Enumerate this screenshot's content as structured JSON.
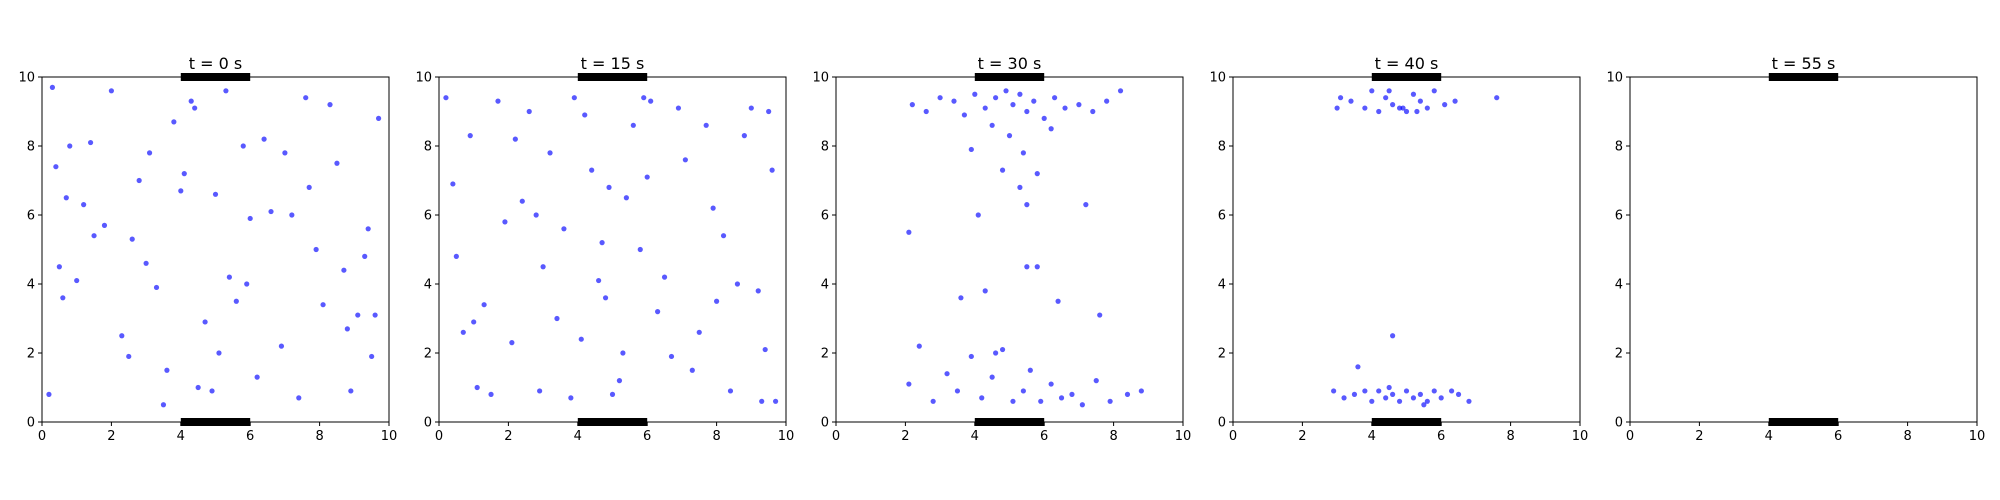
{
  "chart_data": [
    {
      "type": "scatter",
      "title": "t = 0 s",
      "color": "#0000ff",
      "x": [
        0.3,
        0.5,
        0.8,
        1.2,
        0.6,
        1.5,
        2.0,
        2.5,
        3.1,
        3.5,
        4.0,
        4.3,
        4.7,
        5.1,
        5.4,
        5.8,
        6.2,
        6.6,
        7.0,
        7.4,
        7.9,
        8.3,
        8.7,
        9.1,
        9.5,
        9.7,
        0.2,
        1.0,
        1.8,
        2.8,
        3.3,
        3.8,
        4.5,
        5.0,
        5.6,
        6.0,
        6.9,
        7.6,
        8.1,
        8.9,
        9.4,
        0.7,
        1.4,
        2.3,
        3.0,
        4.1,
        4.9,
        5.3,
        6.4,
        7.2,
        8.5,
        9.3,
        9.6,
        2.6,
        3.6,
        4.4,
        5.9,
        7.7,
        8.8,
        0.4
      ],
      "y": [
        9.7,
        4.5,
        8.0,
        6.3,
        3.6,
        5.4,
        9.6,
        1.9,
        7.8,
        0.5,
        6.7,
        9.3,
        2.9,
        2.0,
        4.2,
        8.0,
        1.3,
        6.1,
        7.8,
        0.7,
        5.0,
        9.2,
        4.4,
        3.1,
        1.9,
        8.8,
        0.8,
        4.1,
        5.7,
        7.0,
        3.9,
        8.7,
        1.0,
        6.6,
        3.5,
        5.9,
        2.2,
        9.4,
        3.4,
        0.9,
        5.6,
        6.5,
        8.1,
        2.5,
        4.6,
        7.2,
        0.9,
        9.6,
        8.2,
        6.0,
        7.5,
        4.8,
        3.1,
        5.3,
        1.5,
        9.1,
        4.0,
        6.8,
        2.7,
        7.4
      ],
      "exit_x": [
        4,
        6
      ],
      "exit_y": [
        0,
        10
      ],
      "xlim": [
        0,
        10
      ],
      "ylim": [
        0,
        10
      ],
      "xticks": [
        0,
        2,
        4,
        6,
        8,
        10
      ],
      "yticks": [
        0,
        2,
        4,
        6,
        8,
        10
      ]
    },
    {
      "type": "scatter",
      "title": "t = 15 s",
      "color": "#0000ff",
      "x": [
        0.2,
        0.5,
        0.9,
        1.3,
        1.7,
        2.1,
        2.4,
        2.9,
        3.2,
        3.6,
        3.9,
        4.2,
        4.6,
        4.9,
        5.2,
        5.6,
        5.9,
        6.3,
        6.7,
        7.1,
        7.5,
        7.9,
        8.2,
        8.6,
        9.0,
        9.4,
        9.7,
        0.4,
        1.1,
        1.9,
        2.6,
        3.4,
        4.1,
        4.4,
        5.0,
        5.4,
        6.1,
        6.5,
        7.3,
        8.0,
        8.8,
        9.2,
        9.6,
        0.7,
        1.5,
        2.2,
        3.0,
        3.8,
        4.7,
        5.3,
        5.8,
        6.9,
        7.7,
        8.4,
        9.3,
        1.0,
        2.8,
        4.8,
        6.0,
        9.5
      ],
      "y": [
        9.4,
        4.8,
        8.3,
        3.4,
        9.3,
        2.3,
        6.4,
        0.9,
        7.8,
        5.6,
        9.4,
        8.9,
        4.1,
        6.8,
        1.2,
        8.6,
        9.4,
        3.2,
        1.9,
        7.6,
        2.6,
        6.2,
        5.4,
        4.0,
        9.1,
        2.1,
        0.6,
        6.9,
        1.0,
        5.8,
        9.0,
        3.0,
        2.4,
        7.3,
        0.8,
        6.5,
        9.3,
        4.2,
        1.5,
        3.5,
        8.3,
        3.8,
        7.3,
        2.6,
        0.8,
        8.2,
        4.5,
        0.7,
        5.2,
        2.0,
        5.0,
        9.1,
        8.6,
        0.9,
        0.6,
        2.9,
        6.0,
        3.6,
        7.1,
        9.0
      ],
      "exit_x": [
        4,
        6
      ],
      "exit_y": [
        0,
        10
      ],
      "xlim": [
        0,
        10
      ],
      "ylim": [
        0,
        10
      ],
      "xticks": [
        0,
        2,
        4,
        6,
        8,
        10
      ],
      "yticks": [
        0,
        2,
        4,
        6,
        8,
        10
      ]
    },
    {
      "type": "scatter",
      "title": "t = 30 s",
      "color": "#0000ff",
      "x": [
        2.2,
        2.6,
        3.0,
        3.4,
        3.7,
        4.0,
        4.3,
        4.6,
        4.9,
        5.1,
        5.3,
        5.5,
        5.7,
        6.0,
        6.3,
        6.6,
        7.0,
        7.4,
        7.8,
        8.2,
        4.5,
        5.0,
        5.4,
        5.8,
        6.2,
        3.9,
        4.8,
        5.3,
        5.5,
        4.1,
        2.1,
        3.6,
        4.3,
        5.5,
        5.8,
        6.4,
        7.2,
        7.6,
        2.1,
        2.4,
        2.8,
        3.2,
        3.5,
        3.9,
        4.2,
        4.5,
        4.8,
        5.1,
        5.4,
        5.6,
        5.9,
        6.2,
        6.5,
        6.8,
        7.1,
        7.5,
        7.9,
        8.4,
        8.8,
        4.6
      ],
      "y": [
        9.2,
        9.0,
        9.4,
        9.3,
        8.9,
        9.5,
        9.1,
        9.4,
        9.6,
        9.2,
        9.5,
        9.0,
        9.3,
        8.8,
        9.4,
        9.1,
        9.2,
        9.0,
        9.3,
        9.6,
        8.6,
        8.3,
        7.8,
        7.2,
        8.5,
        7.9,
        7.3,
        6.8,
        6.3,
        6.0,
        5.5,
        3.6,
        3.8,
        4.5,
        4.5,
        3.5,
        6.3,
        3.1,
        1.1,
        2.2,
        0.6,
        1.4,
        0.9,
        1.9,
        0.7,
        1.3,
        2.1,
        0.6,
        0.9,
        1.5,
        0.6,
        1.1,
        0.7,
        0.8,
        0.5,
        1.2,
        0.6,
        0.8,
        0.9,
        2.0
      ],
      "exit_x": [
        4,
        6
      ],
      "exit_y": [
        0,
        10
      ],
      "xlim": [
        0,
        10
      ],
      "ylim": [
        0,
        10
      ],
      "xticks": [
        0,
        2,
        4,
        6,
        8,
        10
      ],
      "yticks": [
        0,
        2,
        4,
        6,
        8,
        10
      ]
    },
    {
      "type": "scatter",
      "title": "t = 40 s",
      "color": "#0000ff",
      "x": [
        3.0,
        3.4,
        3.8,
        4.0,
        4.2,
        4.4,
        4.6,
        4.8,
        5.0,
        5.2,
        5.4,
        5.6,
        5.8,
        6.1,
        6.4,
        7.6,
        3.1,
        4.5,
        4.9,
        5.3,
        2.9,
        3.2,
        3.5,
        3.8,
        4.0,
        4.2,
        4.4,
        4.6,
        4.8,
        5.0,
        5.2,
        5.4,
        5.6,
        5.8,
        6.0,
        6.3,
        6.5,
        6.8,
        4.5,
        5.5,
        3.6,
        4.6
      ],
      "y": [
        9.1,
        9.3,
        9.1,
        9.6,
        9.0,
        9.4,
        9.2,
        9.1,
        9.0,
        9.5,
        9.3,
        9.1,
        9.6,
        9.2,
        9.3,
        9.4,
        9.4,
        9.6,
        9.1,
        9.0,
        0.9,
        0.7,
        0.8,
        0.9,
        0.6,
        0.9,
        0.7,
        0.8,
        0.6,
        0.9,
        0.7,
        0.8,
        0.6,
        0.9,
        0.7,
        0.9,
        0.8,
        0.6,
        1.0,
        0.5,
        1.6,
        2.5
      ],
      "exit_x": [
        4,
        6
      ],
      "exit_y": [
        0,
        10
      ],
      "xlim": [
        0,
        10
      ],
      "ylim": [
        0,
        10
      ],
      "xticks": [
        0,
        2,
        4,
        6,
        8,
        10
      ],
      "yticks": [
        0,
        2,
        4,
        6,
        8,
        10
      ]
    },
    {
      "type": "scatter",
      "title": "t = 55 s",
      "color": "#0000ff",
      "x": [],
      "y": [],
      "exit_x": [
        4,
        6
      ],
      "exit_y": [
        0,
        10
      ],
      "xlim": [
        0,
        10
      ],
      "ylim": [
        0,
        10
      ],
      "xticks": [
        0,
        2,
        4,
        6,
        8,
        10
      ],
      "yticks": [
        0,
        2,
        4,
        6,
        8,
        10
      ]
    }
  ]
}
